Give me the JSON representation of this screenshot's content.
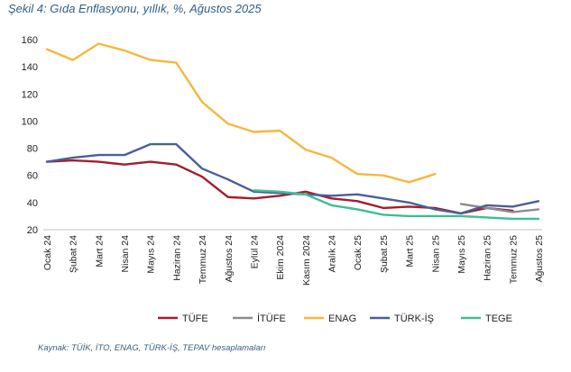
{
  "title": "Şekil 4: Gıda Enflasyonu, yıllık, %, Ağustos 2025",
  "source": "Kaynak: TÜİK, İTO, ENAG, TÜRK-İŞ, TEPAV hesaplamaları",
  "chart_data": {
    "type": "line",
    "title": "Şekil 4: Gıda Enflasyonu, yıllık, %, Ağustos 2025",
    "xlabel": "",
    "ylabel": "",
    "ylim": [
      20,
      160
    ],
    "yticks": [
      20,
      40,
      60,
      80,
      100,
      120,
      140,
      160
    ],
    "grid": false,
    "legend_position": "bottom",
    "categories": [
      "Ocak 24",
      "Şubat 24",
      "Mart 24",
      "Nisan 24",
      "Mayıs 24",
      "Haziran 24",
      "Temmuz 24",
      "Ağustos 24",
      "Eylül 24",
      "Ekim 2024",
      "Kasım 2024",
      "Aralık 24",
      "Ocak 25",
      "Şubat 25",
      "Mart 25",
      "Nisan 25",
      "Mayıs 25",
      "Haziran 25",
      "Temmuz 25",
      "Ağustos 25"
    ],
    "series": [
      {
        "name": "TÜFE",
        "color": "#a31d2a",
        "values": [
          70,
          71,
          70,
          68,
          70,
          68,
          59,
          44,
          43,
          45,
          48,
          43,
          41,
          36,
          37,
          36,
          32,
          36,
          34,
          null
        ]
      },
      {
        "name": "İTÜFE",
        "color": "#8c8c8c",
        "values": [
          null,
          null,
          null,
          null,
          null,
          null,
          null,
          null,
          null,
          null,
          null,
          null,
          null,
          null,
          null,
          null,
          39,
          36,
          33,
          35
        ]
      },
      {
        "name": "ENAG",
        "color": "#f5b83c",
        "values": [
          153,
          145,
          157,
          152,
          145,
          143,
          114,
          98,
          92,
          93,
          79,
          73,
          61,
          60,
          55,
          61,
          null,
          null,
          null,
          null
        ]
      },
      {
        "name": "TÜRK-İŞ",
        "color": "#4a5f99",
        "values": [
          70,
          73,
          75,
          75,
          83,
          83,
          65,
          57,
          48,
          47,
          46,
          45,
          46,
          43,
          40,
          35,
          32,
          38,
          37,
          41
        ]
      },
      {
        "name": "TEGE",
        "color": "#3dbf93",
        "values": [
          null,
          null,
          null,
          null,
          null,
          null,
          null,
          null,
          49,
          48,
          46,
          38,
          35,
          31,
          30,
          30,
          30,
          29,
          28,
          28
        ]
      }
    ]
  }
}
